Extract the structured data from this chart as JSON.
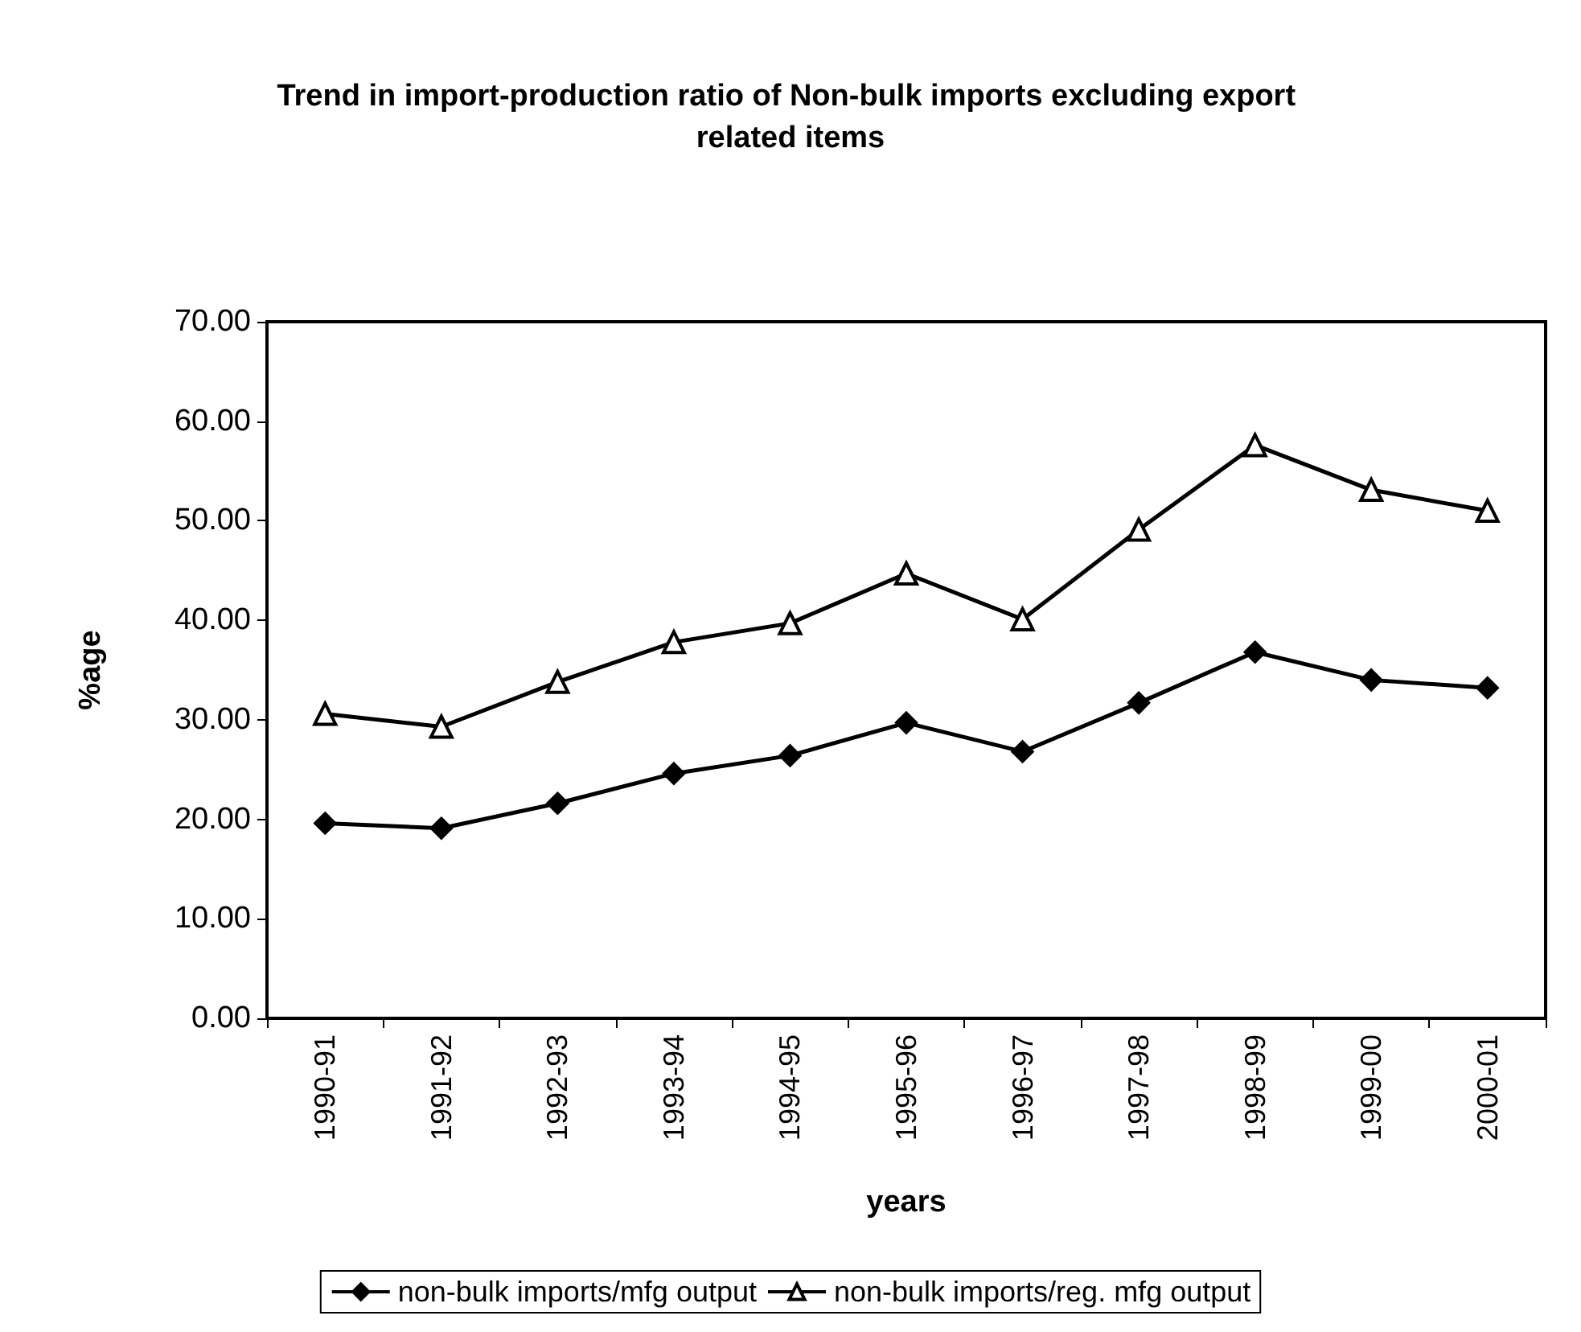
{
  "chart_data": {
    "type": "line",
    "title": "Trend in import-production ratio of Non-bulk imports excluding export related items",
    "xlabel": "years",
    "ylabel": "%age",
    "categories": [
      "1990-91",
      "1991-92",
      "1992-93",
      "1993-94",
      "1994-95",
      "1995-96",
      "1996-97",
      "1997-98",
      "1998-99",
      "1999-00",
      "2000-01"
    ],
    "series": [
      {
        "name": "non-bulk imports/mfg output",
        "color": "#000000",
        "marker": "diamond",
        "values": [
          19.6,
          19.1,
          21.6,
          24.6,
          26.4,
          29.7,
          26.8,
          31.7,
          36.8,
          34.0,
          33.2
        ]
      },
      {
        "name": "non-bulk imports/reg. mfg output",
        "color": "#000000",
        "marker": "triangle",
        "values": [
          30.6,
          29.3,
          33.8,
          37.8,
          39.7,
          44.7,
          40.1,
          49.1,
          57.6,
          53.1,
          51.0
        ]
      }
    ],
    "ylim": [
      0,
      70
    ],
    "yticks": [
      {
        "value": 0,
        "label": "0.00"
      },
      {
        "value": 10,
        "label": "10.00"
      },
      {
        "value": 20,
        "label": "20.00"
      },
      {
        "value": 30,
        "label": "30.00"
      },
      {
        "value": 40,
        "label": "40.00"
      },
      {
        "value": 50,
        "label": "50.00"
      },
      {
        "value": 60,
        "label": "60.00"
      },
      {
        "value": 70,
        "label": "70.00"
      }
    ],
    "grid": false,
    "legend": "bottom",
    "line_style": "solid"
  }
}
